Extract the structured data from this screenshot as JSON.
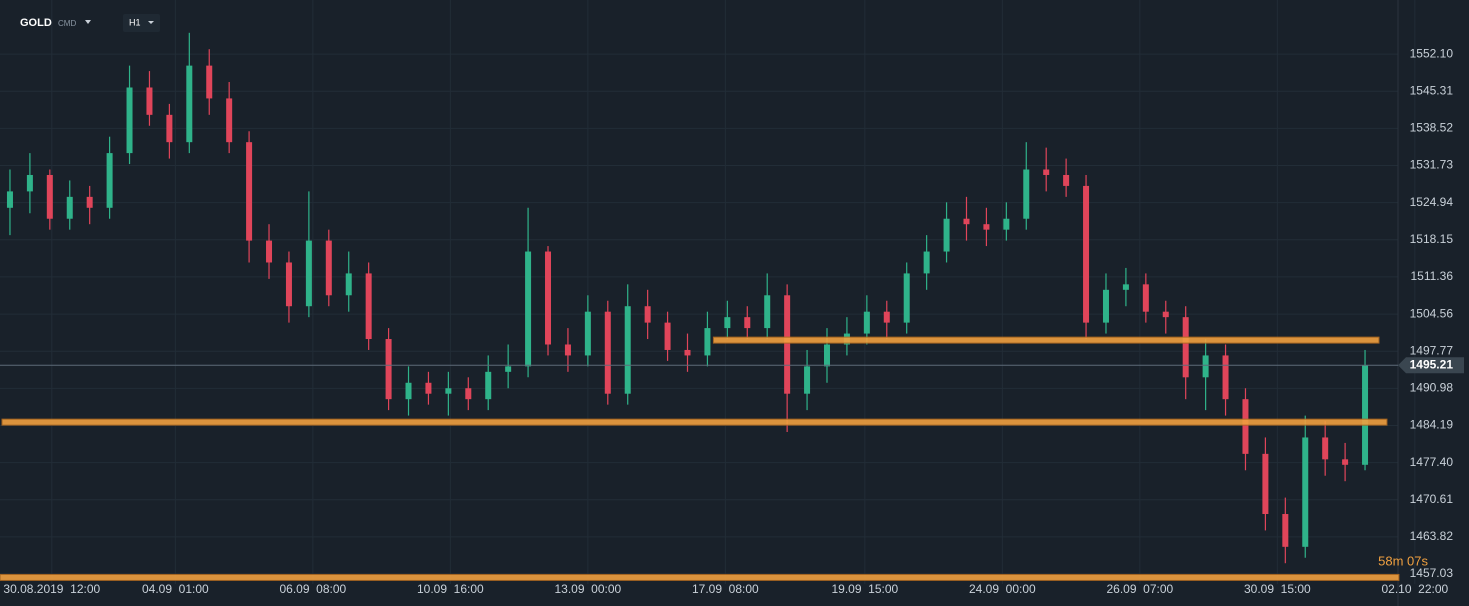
{
  "chart_data": {
    "type": "candlestick",
    "symbol": "GOLD",
    "symbol_tag": "CMD",
    "timeframe": "H1",
    "countdown": "58m 07s",
    "open": [
      1524,
      1527,
      1530,
      1522,
      1526,
      1524,
      1534,
      1546,
      1541,
      1536,
      1550,
      1544,
      1536,
      1518,
      1514,
      1506,
      1518,
      1508,
      1512,
      1500,
      1489,
      1492,
      1490,
      1491,
      1489,
      1494,
      1495,
      1516,
      1499,
      1497,
      1505,
      1490,
      1506,
      1503,
      1498,
      1497,
      1502,
      1504,
      1502,
      1508,
      1490,
      1495,
      1499,
      1501,
      1505,
      1503,
      1512,
      1516,
      1522,
      1521,
      1520,
      1522,
      1531,
      1530,
      1528,
      1503,
      1509,
      1510,
      1505,
      1504,
      1493,
      1497,
      1489,
      1479,
      1468,
      1462,
      1482,
      1478,
      1477
    ],
    "high": [
      1531,
      1534,
      1531,
      1529,
      1528,
      1537,
      1550,
      1549,
      1543,
      1556,
      1553,
      1547,
      1538,
      1521,
      1516,
      1527,
      1520,
      1516,
      1514,
      1502,
      1495,
      1494,
      1494,
      1493,
      1497,
      1499,
      1524,
      1517,
      1502,
      1508,
      1507,
      1510,
      1509,
      1505,
      1501,
      1505,
      1507,
      1506,
      1512,
      1510,
      1498,
      1502,
      1504,
      1508,
      1507,
      1514,
      1519,
      1525,
      1526,
      1524,
      1525,
      1536,
      1535,
      1533,
      1530,
      1512,
      1513,
      1512,
      1507,
      1506,
      1500,
      1499,
      1491,
      1482,
      1471,
      1486,
      1485,
      1481,
      1498
    ],
    "low": [
      1519,
      1523,
      1520,
      1520,
      1521,
      1522,
      1532,
      1539,
      1533,
      1534,
      1541,
      1534,
      1514,
      1511,
      1503,
      1504,
      1506,
      1505,
      1498,
      1487,
      1486,
      1488,
      1486,
      1487,
      1487,
      1491,
      1493,
      1497,
      1494,
      1495,
      1488,
      1488,
      1500,
      1496,
      1494,
      1495,
      1500,
      1500,
      1500,
      1483,
      1487,
      1492,
      1497,
      1499,
      1500,
      1501,
      1509,
      1514,
      1518,
      1517,
      1518,
      1520,
      1527,
      1526,
      1500,
      1501,
      1506,
      1503,
      1501,
      1489,
      1487,
      1486,
      1476,
      1465,
      1459,
      1460,
      1475,
      1474,
      1476
    ],
    "close": [
      1527,
      1530,
      1522,
      1526,
      1524,
      1534,
      1546,
      1541,
      1536,
      1550,
      1544,
      1536,
      1518,
      1514,
      1506,
      1518,
      1508,
      1512,
      1500,
      1489,
      1492,
      1490,
      1491,
      1489,
      1494,
      1495,
      1516,
      1499,
      1497,
      1505,
      1490,
      1506,
      1503,
      1498,
      1497,
      1502,
      1504,
      1502,
      1508,
      1490,
      1495,
      1499,
      1501,
      1505,
      1503,
      1512,
      1516,
      1522,
      1521,
      1520,
      1522,
      1531,
      1530,
      1528,
      1503,
      1509,
      1510,
      1505,
      1504,
      1493,
      1497,
      1489,
      1479,
      1468,
      1462,
      1482,
      1478,
      1477,
      1495.21
    ],
    "up_color": "#2fb38a",
    "down_color": "#e0455a",
    "current_price": 1495.21,
    "levels": [
      {
        "value": 1499.8,
        "from": 35.8,
        "to": 69.2
      },
      {
        "value": 1484.8,
        "from": 0.1,
        "to": 69.6
      },
      {
        "value": 1456.4,
        "from": 0,
        "to": 70.2
      }
    ],
    "level_color": "#f0a040",
    "ylim": [
      1455.2,
      1562
    ],
    "yticks": [
      {
        "value": 1457.03,
        "label": "1457.03"
      },
      1463.82,
      1470.61,
      {
        "value": 1477.4,
        "label": "1477.40"
      },
      1484.19,
      1490.98,
      1497.77,
      1504.56,
      1511.36,
      1518.15,
      1524.94,
      1531.73,
      1538.52,
      1545.31,
      {
        "value": 1552.1,
        "label": "1552.10"
      }
    ],
    "xticks": [
      {
        "value": 2.6,
        "label": "30.08.2019  12:00"
      },
      {
        "value": 8.8,
        "label": "04.09  01:00"
      },
      {
        "value": 15.7,
        "label": "06.09  08:00"
      },
      {
        "value": 22.6,
        "label": "10.09  16:00"
      },
      {
        "value": 29.5,
        "label": "13.09  00:00"
      },
      {
        "value": 36.4,
        "label": "17.09  08:00"
      },
      {
        "value": 43.4,
        "label": "19.09  15:00"
      },
      {
        "value": 50.3,
        "label": "24.09  00:00"
      },
      {
        "value": 57.2,
        "label": "26.09  07:00"
      },
      {
        "value": 64.1,
        "label": "30.09  15:00"
      },
      {
        "value": 71,
        "label": "02.10  22:00"
      }
    ],
    "grid": true
  }
}
